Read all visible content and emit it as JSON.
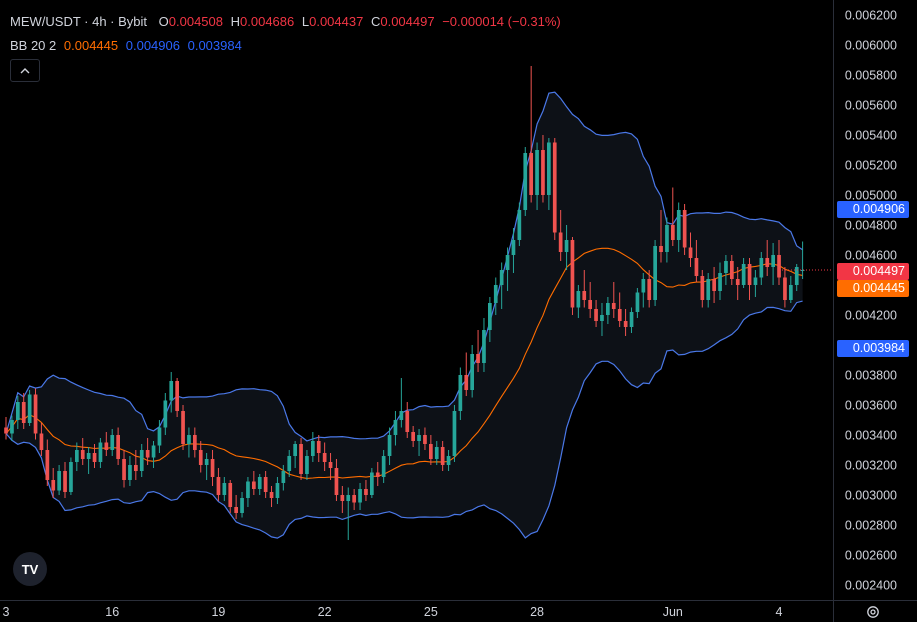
{
  "header": {
    "symbol": "MEW/USDT · 4h · Bybit",
    "o_label": "O",
    "o_value": "0.004508",
    "h_label": "H",
    "h_value": "0.004686",
    "l_label": "L",
    "l_value": "0.004437",
    "c_label": "C",
    "c_value": "0.004497",
    "change": "−0.000014 (−0.31%)",
    "bb_label": "BB 20 2",
    "bb_basis": "0.004445",
    "bb_upper": "0.004906",
    "bb_lower": "0.003984"
  },
  "colors": {
    "up": "#26a69a",
    "down": "#ef5350",
    "basis": "#ff6d00",
    "band": "#2962ff",
    "band_line": "#4a78e8",
    "fill": "#0d1117",
    "grid": "#1a1a1a",
    "text": "#d1d4dc"
  },
  "price_labels": {
    "upper": "0.004906",
    "last": "0.004497",
    "basis": "0.004445",
    "lower": "0.003984"
  },
  "icons": {
    "collapse": "chevron-up-icon",
    "logo": "tradingview-logo-icon",
    "settings": "gear-icon"
  },
  "logo_text": "TV",
  "chart_data": {
    "type": "candlestick",
    "y_axis": {
      "min": 0.0023,
      "max": 0.0063,
      "ticks": [
        "0.006200",
        "0.006000",
        "0.005800",
        "0.005600",
        "0.005400",
        "0.005200",
        "0.005000",
        "0.004800",
        "0.004600",
        "0.004200",
        "0.003800",
        "0.003600",
        "0.003400",
        "0.003200",
        "0.003000",
        "0.002800",
        "0.002600",
        "0.002400"
      ]
    },
    "x_axis": {
      "ticks": [
        {
          "label": "3",
          "index": 0
        },
        {
          "label": "16",
          "index": 18
        },
        {
          "label": "19",
          "index": 36
        },
        {
          "label": "22",
          "index": 54
        },
        {
          "label": "25",
          "index": 72
        },
        {
          "label": "28",
          "index": 90
        },
        {
          "label": "Jun",
          "index": 113
        },
        {
          "label": "4",
          "index": 131
        }
      ],
      "bars_total": 132
    },
    "series": [
      {
        "name": "MEW/USDT",
        "type": "candles",
        "ohlc": [
          [
            0.00345,
            0.00352,
            0.00337,
            0.00341
          ],
          [
            0.00341,
            0.00353,
            0.00336,
            0.0035
          ],
          [
            0.0035,
            0.00366,
            0.00344,
            0.00362
          ],
          [
            0.00362,
            0.00368,
            0.00344,
            0.00348
          ],
          [
            0.00348,
            0.0037,
            0.00346,
            0.00367
          ],
          [
            0.00367,
            0.00371,
            0.00337,
            0.00341
          ],
          [
            0.00341,
            0.00348,
            0.00326,
            0.0033
          ],
          [
            0.0033,
            0.00337,
            0.00306,
            0.0031
          ],
          [
            0.0031,
            0.00318,
            0.00298,
            0.00303
          ],
          [
            0.00303,
            0.0032,
            0.003,
            0.00316
          ],
          [
            0.00316,
            0.00322,
            0.00298,
            0.00302
          ],
          [
            0.00302,
            0.00325,
            0.003,
            0.00322
          ],
          [
            0.00322,
            0.00335,
            0.00316,
            0.0033
          ],
          [
            0.0033,
            0.00338,
            0.0032,
            0.00324
          ],
          [
            0.00324,
            0.00332,
            0.00314,
            0.00328
          ],
          [
            0.00328,
            0.00334,
            0.00318,
            0.00322
          ],
          [
            0.00322,
            0.00338,
            0.00318,
            0.00335
          ],
          [
            0.00335,
            0.00342,
            0.00326,
            0.0033
          ],
          [
            0.0033,
            0.00344,
            0.00326,
            0.0034
          ],
          [
            0.0034,
            0.00345,
            0.0032,
            0.00324
          ],
          [
            0.00324,
            0.0033,
            0.00305,
            0.0031
          ],
          [
            0.0031,
            0.00326,
            0.00306,
            0.0032
          ],
          [
            0.0032,
            0.0033,
            0.0031,
            0.00316
          ],
          [
            0.00316,
            0.00334,
            0.00312,
            0.0033
          ],
          [
            0.0033,
            0.00338,
            0.0032,
            0.00325
          ],
          [
            0.00325,
            0.00336,
            0.00318,
            0.00333
          ],
          [
            0.00333,
            0.0035,
            0.00328,
            0.00345
          ],
          [
            0.00345,
            0.00368,
            0.0034,
            0.00363
          ],
          [
            0.00363,
            0.00382,
            0.00355,
            0.00376
          ],
          [
            0.00376,
            0.00378,
            0.00352,
            0.00356
          ],
          [
            0.00356,
            0.0036,
            0.0033,
            0.00334
          ],
          [
            0.00334,
            0.00345,
            0.00325,
            0.0034
          ],
          [
            0.0034,
            0.00345,
            0.00325,
            0.0033
          ],
          [
            0.0033,
            0.00336,
            0.00315,
            0.0032
          ],
          [
            0.0032,
            0.00328,
            0.0031,
            0.00324
          ],
          [
            0.00324,
            0.0033,
            0.00306,
            0.00312
          ],
          [
            0.00312,
            0.00318,
            0.00296,
            0.003
          ],
          [
            0.003,
            0.00312,
            0.00296,
            0.00308
          ],
          [
            0.00308,
            0.0031,
            0.00288,
            0.00292
          ],
          [
            0.00292,
            0.003,
            0.00284,
            0.00288
          ],
          [
            0.00288,
            0.00302,
            0.00285,
            0.00298
          ],
          [
            0.00298,
            0.00312,
            0.00292,
            0.00309
          ],
          [
            0.00309,
            0.00316,
            0.003,
            0.00304
          ],
          [
            0.00304,
            0.00314,
            0.003,
            0.00312
          ],
          [
            0.00312,
            0.00316,
            0.00298,
            0.00302
          ],
          [
            0.00302,
            0.00306,
            0.00292,
            0.00298
          ],
          [
            0.00298,
            0.00312,
            0.00294,
            0.00308
          ],
          [
            0.00308,
            0.0032,
            0.00303,
            0.00316
          ],
          [
            0.00316,
            0.0033,
            0.00312,
            0.00326
          ],
          [
            0.00326,
            0.00336,
            0.00318,
            0.00334
          ],
          [
            0.00334,
            0.00338,
            0.0031,
            0.00314
          ],
          [
            0.00314,
            0.0033,
            0.0031,
            0.00326
          ],
          [
            0.00326,
            0.00342,
            0.00322,
            0.00336
          ],
          [
            0.00336,
            0.0034,
            0.00322,
            0.00328
          ],
          [
            0.00328,
            0.00335,
            0.00316,
            0.00322
          ],
          [
            0.00322,
            0.00328,
            0.0031,
            0.00318
          ],
          [
            0.00318,
            0.00324,
            0.00296,
            0.003
          ],
          [
            0.003,
            0.00306,
            0.00288,
            0.00296
          ],
          [
            0.00296,
            0.00305,
            0.0027,
            0.003
          ],
          [
            0.003,
            0.00304,
            0.0029,
            0.00295
          ],
          [
            0.00295,
            0.00308,
            0.0029,
            0.00304
          ],
          [
            0.00304,
            0.0031,
            0.00296,
            0.003
          ],
          [
            0.003,
            0.00318,
            0.00298,
            0.00315
          ],
          [
            0.00315,
            0.00322,
            0.00306,
            0.00312
          ],
          [
            0.00312,
            0.0033,
            0.00308,
            0.00326
          ],
          [
            0.00326,
            0.00345,
            0.0032,
            0.0034
          ],
          [
            0.0034,
            0.00356,
            0.00333,
            0.0035
          ],
          [
            0.0035,
            0.00378,
            0.00345,
            0.00356
          ],
          [
            0.00356,
            0.00362,
            0.00338,
            0.00342
          ],
          [
            0.00342,
            0.00346,
            0.00332,
            0.00336
          ],
          [
            0.00336,
            0.00344,
            0.00326,
            0.0034
          ],
          [
            0.0034,
            0.00345,
            0.0033,
            0.00334
          ],
          [
            0.00334,
            0.0034,
            0.0032,
            0.00324
          ],
          [
            0.00324,
            0.00336,
            0.0032,
            0.00332
          ],
          [
            0.00332,
            0.00336,
            0.00316,
            0.0032
          ],
          [
            0.0032,
            0.0033,
            0.00316,
            0.00326
          ],
          [
            0.00326,
            0.0036,
            0.00322,
            0.00356
          ],
          [
            0.00356,
            0.00385,
            0.0035,
            0.0038
          ],
          [
            0.0038,
            0.00395,
            0.00366,
            0.0037
          ],
          [
            0.0037,
            0.004,
            0.00365,
            0.00394
          ],
          [
            0.00394,
            0.0041,
            0.00382,
            0.00388
          ],
          [
            0.00388,
            0.00418,
            0.00382,
            0.0041
          ],
          [
            0.0041,
            0.00432,
            0.00402,
            0.00428
          ],
          [
            0.00428,
            0.00445,
            0.0042,
            0.0044
          ],
          [
            0.0044,
            0.00455,
            0.00424,
            0.0045
          ],
          [
            0.0045,
            0.00465,
            0.00436,
            0.0046
          ],
          [
            0.0046,
            0.00478,
            0.00448,
            0.0047
          ],
          [
            0.0047,
            0.00495,
            0.00466,
            0.0049
          ],
          [
            0.0049,
            0.00532,
            0.00486,
            0.00528
          ],
          [
            0.00528,
            0.00586,
            0.00495,
            0.005
          ],
          [
            0.005,
            0.00535,
            0.0049,
            0.0053
          ],
          [
            0.0053,
            0.0054,
            0.00495,
            0.005
          ],
          [
            0.005,
            0.00538,
            0.0049,
            0.00535
          ],
          [
            0.00535,
            0.00538,
            0.0047,
            0.00475
          ],
          [
            0.00475,
            0.0049,
            0.00456,
            0.00462
          ],
          [
            0.00462,
            0.0048,
            0.0045,
            0.0047
          ],
          [
            0.0047,
            0.00472,
            0.0042,
            0.00425
          ],
          [
            0.00425,
            0.0044,
            0.00418,
            0.00436
          ],
          [
            0.00436,
            0.0045,
            0.00425,
            0.0043
          ],
          [
            0.0043,
            0.00442,
            0.00418,
            0.00424
          ],
          [
            0.00424,
            0.0043,
            0.00412,
            0.00416
          ],
          [
            0.00416,
            0.00428,
            0.00406,
            0.0042
          ],
          [
            0.0042,
            0.00432,
            0.00414,
            0.00428
          ],
          [
            0.00428,
            0.00442,
            0.00418,
            0.00424
          ],
          [
            0.00424,
            0.00435,
            0.00412,
            0.00416
          ],
          [
            0.00416,
            0.00424,
            0.00406,
            0.00412
          ],
          [
            0.00412,
            0.00425,
            0.00408,
            0.00422
          ],
          [
            0.00422,
            0.00438,
            0.00418,
            0.00435
          ],
          [
            0.00435,
            0.00448,
            0.00425,
            0.00444
          ],
          [
            0.00444,
            0.0045,
            0.00425,
            0.0043
          ],
          [
            0.0043,
            0.0047,
            0.00426,
            0.00466
          ],
          [
            0.00466,
            0.0049,
            0.00455,
            0.00462
          ],
          [
            0.00462,
            0.00485,
            0.00455,
            0.0048
          ],
          [
            0.0048,
            0.00505,
            0.00466,
            0.0047
          ],
          [
            0.0047,
            0.00495,
            0.00462,
            0.0049
          ],
          [
            0.0049,
            0.00494,
            0.0046,
            0.00465
          ],
          [
            0.00465,
            0.00475,
            0.00452,
            0.00458
          ],
          [
            0.00458,
            0.0047,
            0.00442,
            0.00446
          ],
          [
            0.00446,
            0.0045,
            0.00425,
            0.0043
          ],
          [
            0.0043,
            0.00448,
            0.00425,
            0.00444
          ],
          [
            0.00444,
            0.00452,
            0.00428,
            0.00436
          ],
          [
            0.00436,
            0.00455,
            0.0043,
            0.00448
          ],
          [
            0.00448,
            0.0046,
            0.0044,
            0.00456
          ],
          [
            0.00456,
            0.0046,
            0.0044,
            0.00444
          ],
          [
            0.00444,
            0.00452,
            0.0043,
            0.0044
          ],
          [
            0.0044,
            0.00458,
            0.00438,
            0.00454
          ],
          [
            0.00454,
            0.00458,
            0.0043,
            0.0044
          ],
          [
            0.0044,
            0.0045,
            0.00432,
            0.00445
          ],
          [
            0.00445,
            0.00462,
            0.0044,
            0.00458
          ],
          [
            0.00458,
            0.0047,
            0.00446,
            0.00452
          ],
          [
            0.00452,
            0.00468,
            0.0044,
            0.0046
          ],
          [
            0.0046,
            0.0047,
            0.0044,
            0.00445
          ],
          [
            0.00445,
            0.00452,
            0.00425,
            0.0043
          ],
          [
            0.0043,
            0.00446,
            0.00428,
            0.0044
          ],
          [
            0.0044,
            0.00454,
            0.00436,
            0.00452
          ],
          [
            0.0045,
            0.00469,
            0.00444,
            0.0045
          ]
        ]
      },
      {
        "name": "BB 20 2",
        "type": "bands"
      }
    ]
  }
}
